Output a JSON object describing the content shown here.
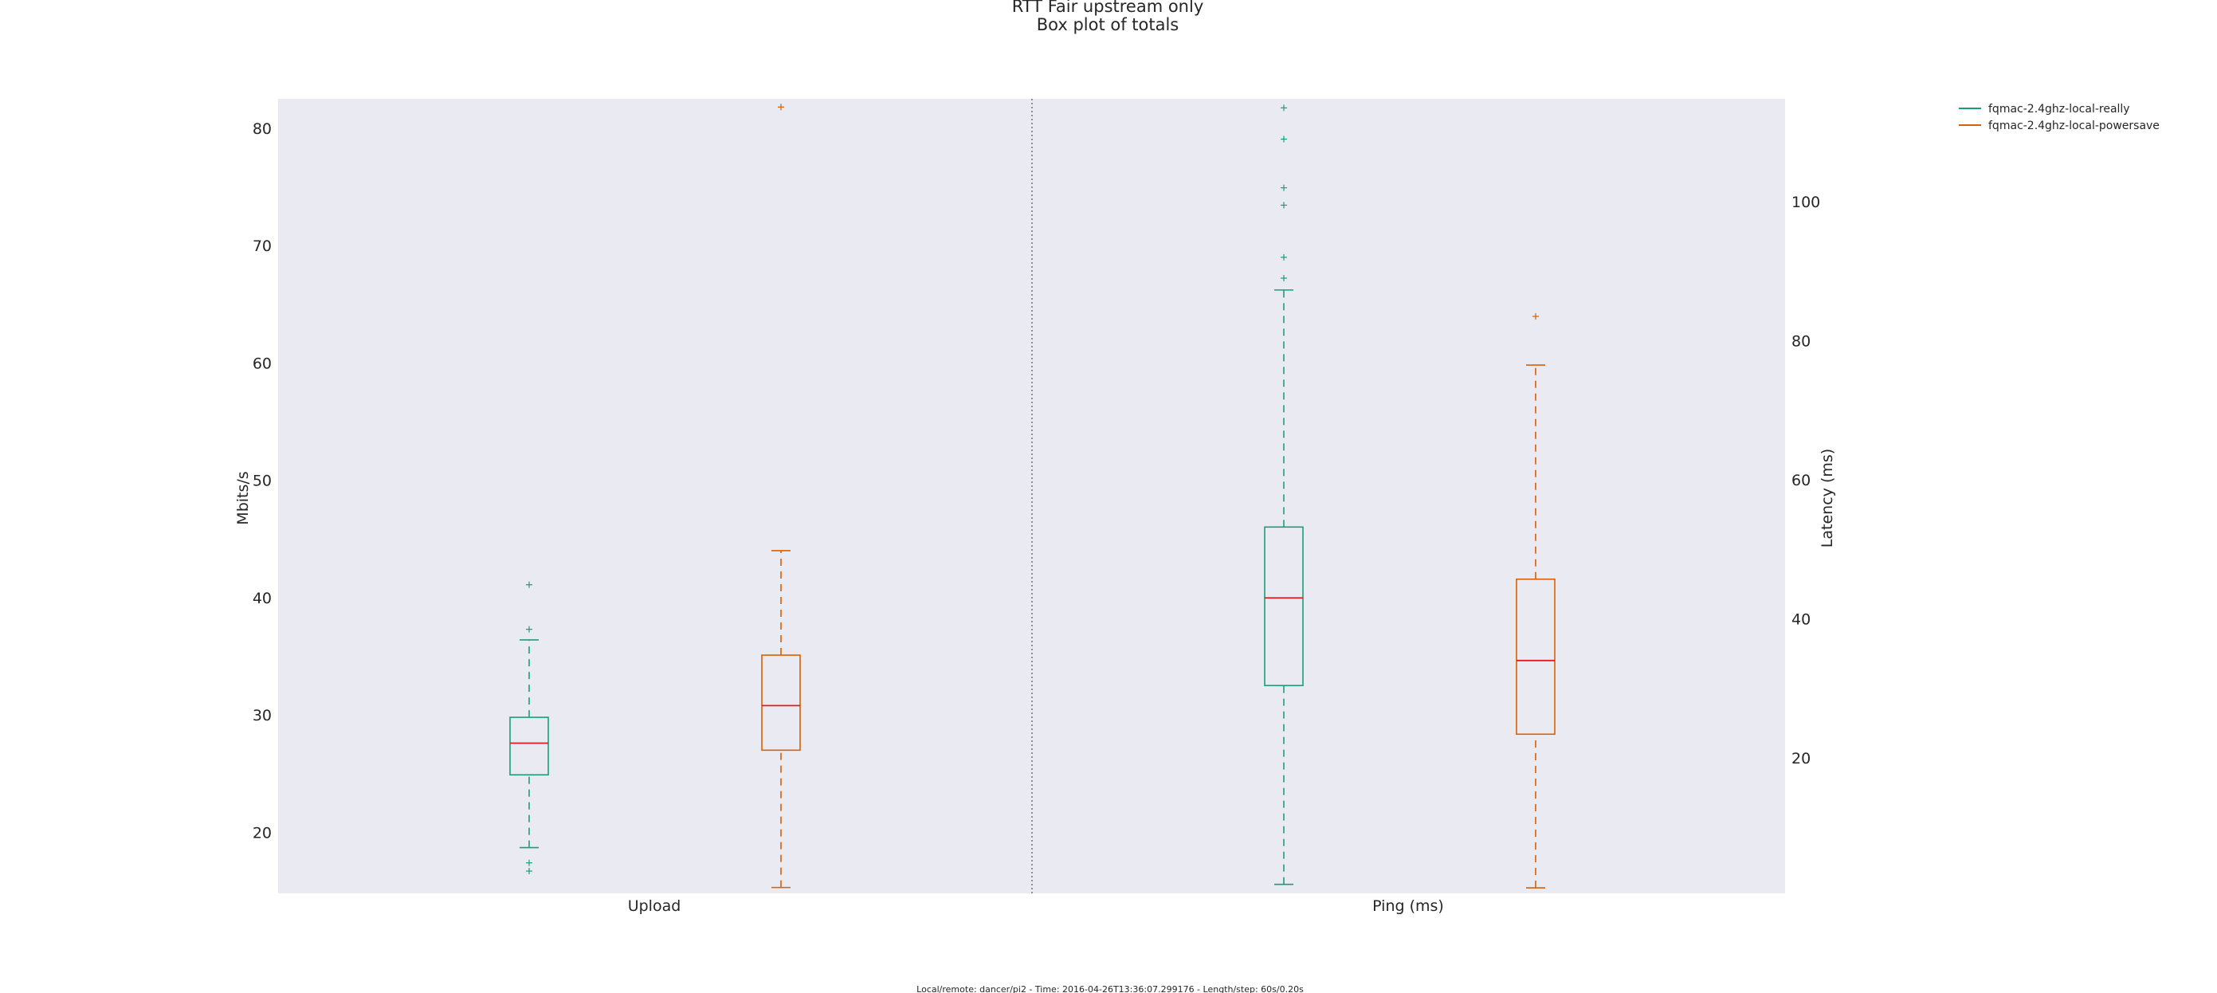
{
  "chart_data": {
    "type": "box",
    "title": "RTT Fair upstream only",
    "subtitle": "Box plot of totals",
    "footer": "Local/remote: dancer/pi2 - Time: 2016-04-26T13:36:07.299176 - Length/step: 60s/0.20s",
    "legend": {
      "placement": "outside top-right",
      "entries": [
        {
          "label": "fqmac-2.4ghz-local-really",
          "color": "#1b9e77"
        },
        {
          "label": "fqmac-2.4ghz-local-powersave",
          "color": "#d95f02"
        }
      ]
    },
    "median_color": "#e41a1c",
    "grid": false,
    "background": "#eaeaf2",
    "panels": [
      {
        "category": "Upload",
        "axis": "left",
        "ylabel": "Mbits/s",
        "ylim": [
          14.8,
          82.5
        ],
        "yticks": [
          20,
          30,
          40,
          50,
          60,
          70,
          80
        ],
        "boxes": [
          {
            "series": "fqmac-2.4ghz-local-really",
            "whisker_low": 18.7,
            "q1": 24.9,
            "median": 27.6,
            "q3": 29.8,
            "whisker_high": 36.4,
            "outliers": [
              16.7,
              17.4,
              37.3,
              41.1
            ]
          },
          {
            "series": "fqmac-2.4ghz-local-powersave",
            "whisker_low": 15.3,
            "q1": 27.0,
            "median": 30.8,
            "q3": 35.1,
            "whisker_high": 44.0,
            "outliers": [
              81.8
            ]
          }
        ]
      },
      {
        "category": "Ping (ms)",
        "axis": "right",
        "ylabel": "Latency (ms)",
        "ylim": [
          0.5,
          114.8
        ],
        "yticks": [
          20,
          40,
          60,
          80,
          100
        ],
        "boxes": [
          {
            "series": "fqmac-2.4ghz-local-really",
            "whisker_low": 1.8,
            "q1": 30.4,
            "median": 43.0,
            "q3": 53.2,
            "whisker_high": 87.3,
            "outliers": [
              89.0,
              92.0,
              99.5,
              102.0,
              109.0,
              113.5
            ]
          },
          {
            "series": "fqmac-2.4ghz-local-powersave",
            "whisker_low": 1.3,
            "q1": 23.4,
            "median": 34.0,
            "q3": 45.7,
            "whisker_high": 76.5,
            "outliers": [
              83.5
            ]
          }
        ]
      }
    ]
  }
}
